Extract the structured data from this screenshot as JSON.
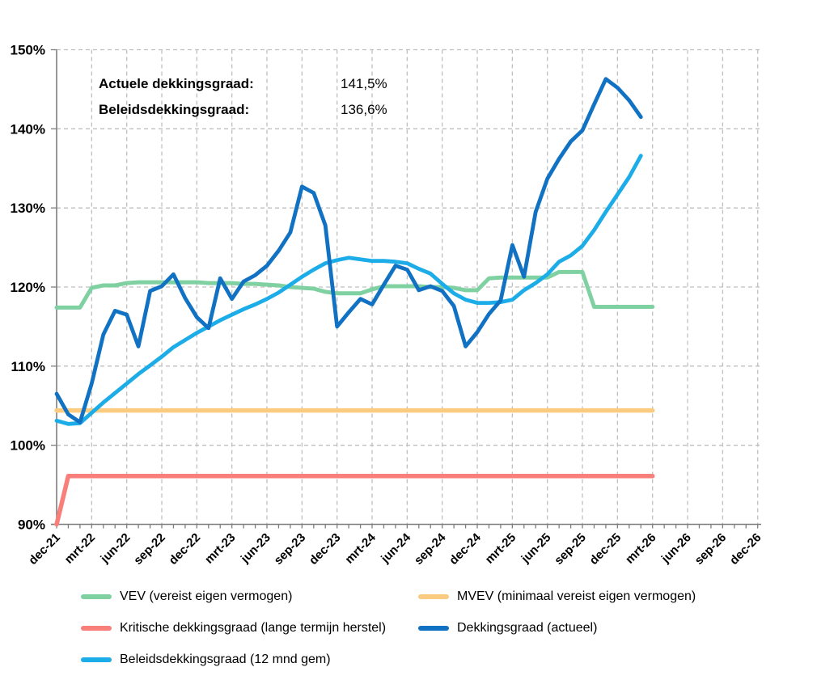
{
  "annotation": {
    "rows": [
      {
        "label": "Actuele dekkingsgraad:",
        "value": "141,5%"
      },
      {
        "label": "Beleidsdekkingsgraad:",
        "value": "136,6%"
      }
    ]
  },
  "chart_data": {
    "type": "line",
    "title": "",
    "xlabel": "",
    "ylabel": "",
    "ylim": [
      90,
      150
    ],
    "grid": "dashed",
    "legend_position": "bottom",
    "y_tick_labels": [
      "90%",
      "100%",
      "110%",
      "120%",
      "130%",
      "140%",
      "150%"
    ],
    "x_tick_labels": [
      "dec-21",
      "mrt-22",
      "jun-22",
      "sep-22",
      "dec-22",
      "mrt-23",
      "jun-23",
      "sep-23",
      "dec-23",
      "mrt-24",
      "jun-24",
      "sep-24",
      "dec-24",
      "mrt-25",
      "jun-25",
      "sep-25",
      "dec-25",
      "mrt-26",
      "jun-26",
      "sep-26",
      "dec-26"
    ],
    "months": [
      "dec-21",
      "jan-22",
      "feb-22",
      "mrt-22",
      "apr-22",
      "mei-22",
      "jun-22",
      "jul-22",
      "aug-22",
      "sep-22",
      "okt-22",
      "nov-22",
      "dec-22",
      "jan-23",
      "feb-23",
      "mrt-23",
      "apr-23",
      "mei-23",
      "jun-23",
      "jul-23",
      "aug-23",
      "sep-23",
      "okt-23",
      "nov-23",
      "dec-23",
      "jan-24",
      "feb-24",
      "mrt-24",
      "apr-24",
      "mei-24",
      "jun-24",
      "jul-24",
      "aug-24",
      "sep-24",
      "okt-24",
      "nov-24",
      "dec-24",
      "jan-25",
      "feb-25",
      "mrt-25",
      "apr-25",
      "mei-25",
      "jun-25",
      "jul-25",
      "aug-25",
      "sep-25",
      "okt-25",
      "nov-25",
      "dec-25",
      "jan-26",
      "feb-26",
      "mrt-26"
    ],
    "series": [
      {
        "name": "VEV (vereist eigen vermogen)",
        "color": "#7fd1a1",
        "values": [
          117.4,
          117.4,
          117.4,
          119.9,
          120.2,
          120.2,
          120.5,
          120.6,
          120.6,
          120.6,
          120.6,
          120.6,
          120.6,
          120.5,
          120.5,
          120.5,
          120.4,
          120.4,
          120.3,
          120.2,
          120.0,
          119.9,
          119.8,
          119.4,
          119.2,
          119.2,
          119.2,
          119.7,
          120.1,
          120.1,
          120.1,
          120.1,
          120.0,
          120.0,
          119.9,
          119.6,
          119.6,
          121.1,
          121.2,
          121.2,
          121.2,
          121.2,
          121.2,
          121.9,
          121.9,
          121.9,
          117.5,
          117.5,
          117.5,
          117.5,
          117.5,
          117.5
        ]
      },
      {
        "name": "MVEV (minimaal vereist eigen vermogen)",
        "color": "#fbcc80",
        "values": [
          104.4,
          104.4,
          104.4,
          104.4,
          104.4,
          104.4,
          104.4,
          104.4,
          104.4,
          104.4,
          104.4,
          104.4,
          104.4,
          104.4,
          104.4,
          104.4,
          104.4,
          104.4,
          104.4,
          104.4,
          104.4,
          104.4,
          104.4,
          104.4,
          104.4,
          104.4,
          104.4,
          104.4,
          104.4,
          104.4,
          104.4,
          104.4,
          104.4,
          104.4,
          104.4,
          104.4,
          104.4,
          104.4,
          104.4,
          104.4,
          104.4,
          104.4,
          104.4,
          104.4,
          104.4,
          104.4,
          104.4,
          104.4,
          104.4,
          104.4,
          104.4,
          104.4
        ]
      },
      {
        "name": "Kritische dekkingsgraad (lange termijn herstel)",
        "color": "#f97f7b",
        "values": [
          90.0,
          96.1,
          96.1,
          96.1,
          96.1,
          96.1,
          96.1,
          96.1,
          96.1,
          96.1,
          96.1,
          96.1,
          96.1,
          96.1,
          96.1,
          96.1,
          96.1,
          96.1,
          96.1,
          96.1,
          96.1,
          96.1,
          96.1,
          96.1,
          96.1,
          96.1,
          96.1,
          96.1,
          96.1,
          96.1,
          96.1,
          96.1,
          96.1,
          96.1,
          96.1,
          96.1,
          96.1,
          96.1,
          96.1,
          96.1,
          96.1,
          96.1,
          96.1,
          96.1,
          96.1,
          96.1,
          96.1,
          96.1,
          96.1,
          96.1,
          96.1,
          96.1
        ]
      },
      {
        "name": "Dekkingsgraad (actueel)",
        "color": "#1172c3",
        "values": [
          106.5,
          103.9,
          102.9,
          107.8,
          114.0,
          117.0,
          116.5,
          112.5,
          119.5,
          120.1,
          121.6,
          118.6,
          116.2,
          114.8,
          121.1,
          118.5,
          120.7,
          121.5,
          122.7,
          124.6,
          126.9,
          132.7,
          131.9,
          127.8,
          115.0,
          116.8,
          118.5,
          117.8,
          120.3,
          122.7,
          122.2,
          119.6,
          120.1,
          119.5,
          117.6,
          112.5,
          114.3,
          116.6,
          118.3,
          125.3,
          121.3,
          129.5,
          133.7,
          136.2,
          138.4,
          139.8,
          143.1,
          146.3,
          145.2,
          143.6,
          141.5,
          null
        ]
      },
      {
        "name": "Beleidsdekkingsgraad (12 mnd gem)",
        "color": "#1cade8",
        "values": [
          103.1,
          102.7,
          102.8,
          104.1,
          105.4,
          106.6,
          107.8,
          109.0,
          110.1,
          111.2,
          112.4,
          113.3,
          114.2,
          115.0,
          115.8,
          116.5,
          117.2,
          117.8,
          118.5,
          119.3,
          120.3,
          121.3,
          122.2,
          123.0,
          123.4,
          123.7,
          123.5,
          123.3,
          123.3,
          123.2,
          123.0,
          122.3,
          121.7,
          120.4,
          119.2,
          118.4,
          118.0,
          118.0,
          118.1,
          118.4,
          119.6,
          120.5,
          121.6,
          123.2,
          124.0,
          125.2,
          127.2,
          129.5,
          131.7,
          133.9,
          136.6,
          null
        ]
      }
    ]
  }
}
